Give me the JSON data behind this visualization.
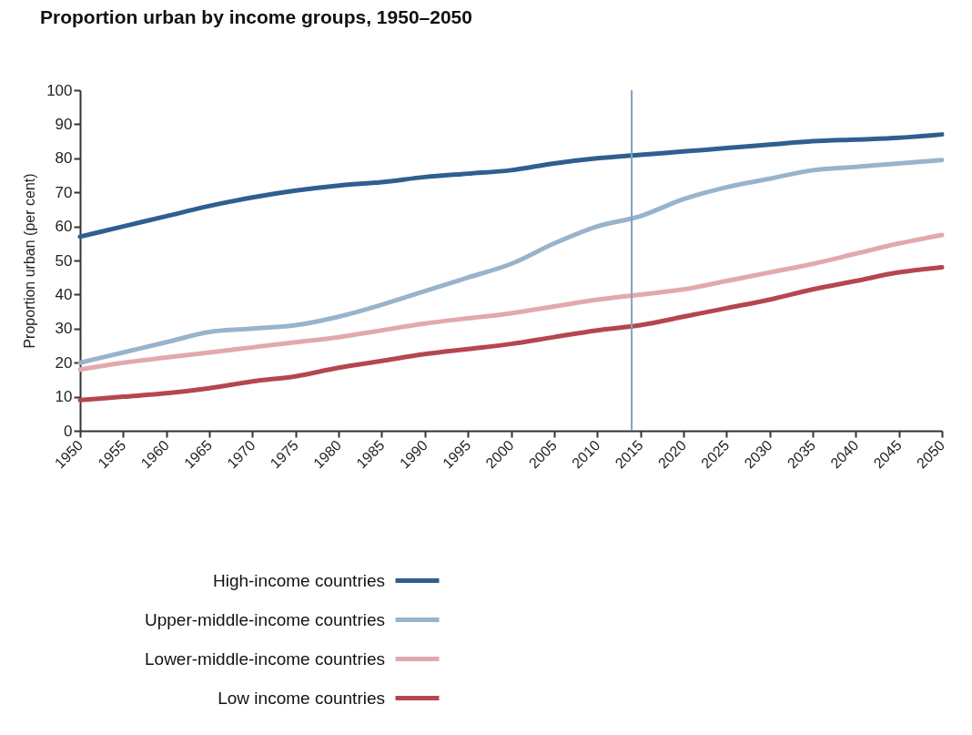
{
  "chart_data": {
    "type": "line",
    "title": "Proportion urban by income groups, 1950–2050",
    "ylabel": "Proportion urban (per cent)",
    "x": [
      1950,
      1955,
      1960,
      1965,
      1970,
      1975,
      1980,
      1985,
      1990,
      1995,
      2000,
      2005,
      2010,
      2015,
      2020,
      2025,
      2030,
      2035,
      2040,
      2045,
      2050
    ],
    "series": [
      {
        "name": "High-income countries",
        "color": "#2f5f8f",
        "values": [
          57,
          60,
          63,
          66,
          68.5,
          70.5,
          72,
          73,
          74.5,
          75.5,
          76.5,
          78.5,
          80,
          81,
          82,
          83,
          84,
          85,
          85.5,
          86,
          87
        ]
      },
      {
        "name": "Upper-middle-income countries",
        "color": "#98b4cc",
        "values": [
          20,
          23,
          26,
          29,
          30,
          31,
          33.5,
          37,
          41,
          45,
          49,
          55,
          60,
          63,
          68,
          71.5,
          74,
          76.5,
          77.5,
          78.5,
          79.5
        ]
      },
      {
        "name": "Lower-middle-income countries",
        "color": "#e2a9ad",
        "values": [
          18,
          20,
          21.5,
          23,
          24.5,
          26,
          27.5,
          29.5,
          31.5,
          33,
          34.5,
          36.5,
          38.5,
          40,
          41.5,
          44,
          46.5,
          49,
          52,
          55,
          57.5
        ]
      },
      {
        "name": "Low income countries",
        "color": "#b5464f",
        "values": [
          9,
          10,
          11,
          12.5,
          14.5,
          16,
          18.5,
          20.5,
          22.5,
          24,
          25.5,
          27.5,
          29.5,
          31,
          33.5,
          36,
          38.5,
          41.5,
          44,
          46.5,
          48
        ]
      }
    ],
    "xlim": [
      1950,
      2050
    ],
    "xticks": [
      1950,
      1955,
      1960,
      1965,
      1970,
      1975,
      1980,
      1985,
      1990,
      1995,
      2000,
      2005,
      2010,
      2015,
      2020,
      2025,
      2030,
      2035,
      2040,
      2045,
      2050
    ],
    "ylim": [
      0,
      100
    ],
    "yticks": [
      0,
      10,
      20,
      30,
      40,
      50,
      60,
      70,
      80,
      90,
      100
    ],
    "ref_lines": [
      {
        "axis": "x",
        "value": 2014,
        "color": "#7fa2c3"
      }
    ],
    "legend": "bottom left"
  }
}
